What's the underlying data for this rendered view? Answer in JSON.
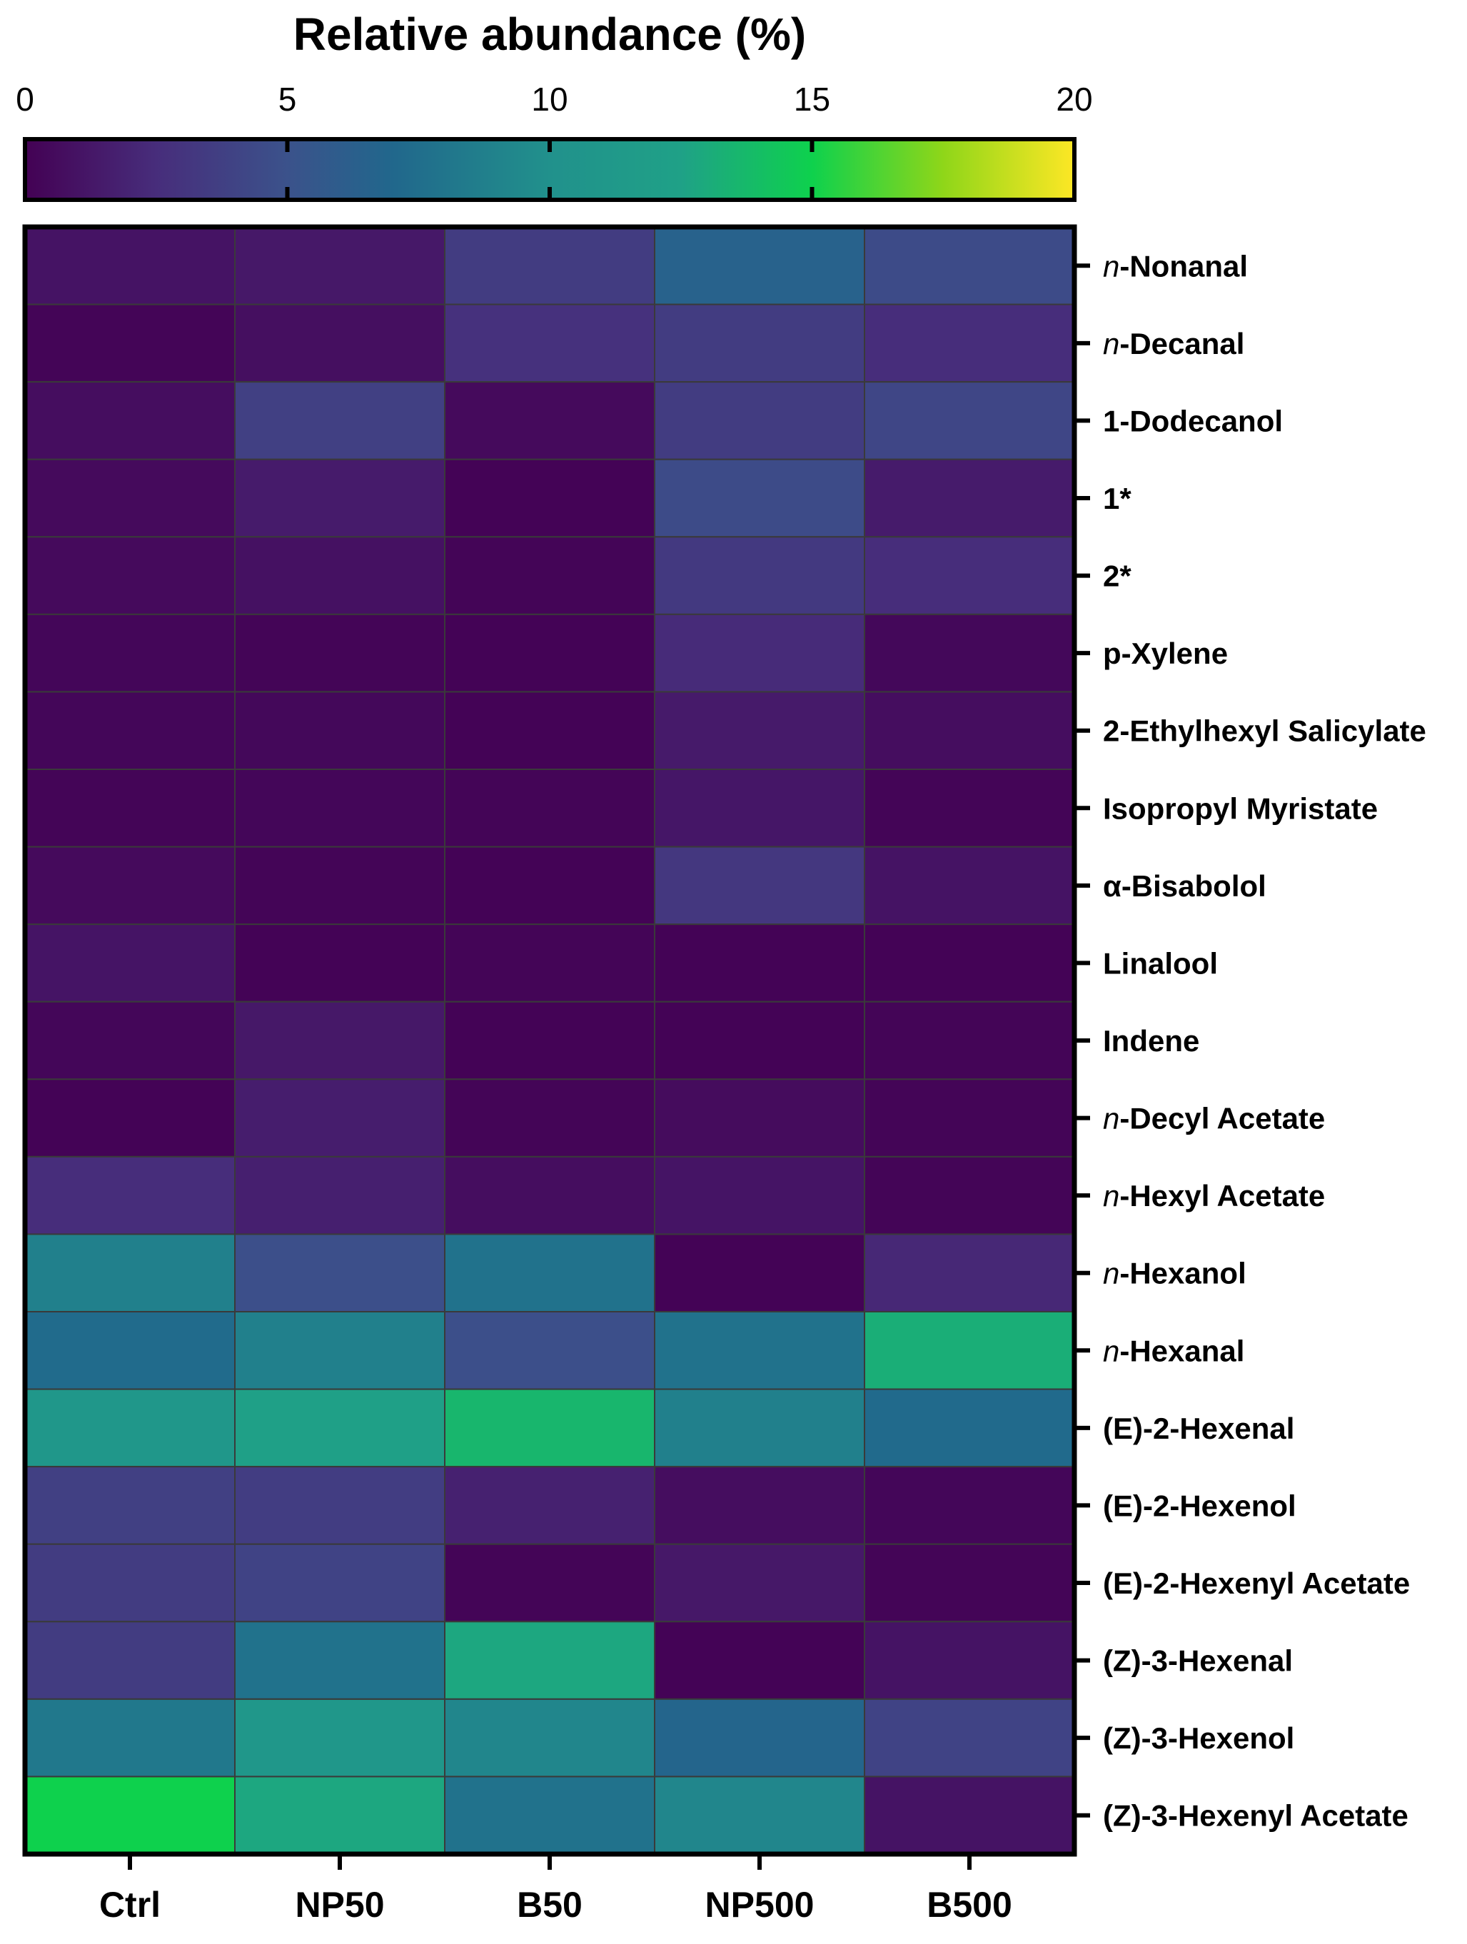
{
  "chart_data": {
    "type": "heatmap",
    "title": "Relative abundance (%)",
    "colorbar": {
      "range": [
        0,
        20
      ],
      "ticks": [
        "0",
        "5",
        "10",
        "15",
        "20"
      ],
      "stops": [
        {
          "value": 0,
          "color": "#440154"
        },
        {
          "value": 2.5,
          "color": "#472d7b"
        },
        {
          "value": 5,
          "color": "#3b528b"
        },
        {
          "value": 7,
          "color": "#21678c"
        },
        {
          "value": 10,
          "color": "#21918c"
        },
        {
          "value": 12.5,
          "color": "#1fa187"
        },
        {
          "value": 15,
          "color": "#0ed14d"
        },
        {
          "value": 17.5,
          "color": "#8fd619"
        },
        {
          "value": 20,
          "color": "#fde725"
        }
      ]
    },
    "columns": [
      "Ctrl",
      "NP50",
      "B50",
      "NP500",
      "B500"
    ],
    "rows": [
      {
        "label": "n-Nonanal",
        "prefix": "n",
        "suffix": "-Nonanal",
        "values": [
          1.0,
          1.3,
          3.5,
          6.5,
          4.5
        ]
      },
      {
        "label": "n-Decanal",
        "prefix": "n",
        "suffix": "-Decanal",
        "values": [
          0.2,
          0.8,
          2.8,
          3.5,
          2.5
        ]
      },
      {
        "label": "1-Dodecanol",
        "prefix": "",
        "suffix": "1-Dodecanol",
        "values": [
          0.7,
          3.8,
          0.5,
          3.5,
          4.2
        ]
      },
      {
        "label": "1*",
        "prefix": "",
        "suffix": "1*",
        "values": [
          0.5,
          1.5,
          0.1,
          4.5,
          1.5
        ]
      },
      {
        "label": "2*",
        "prefix": "",
        "suffix": "2*",
        "values": [
          0.5,
          0.9,
          0.2,
          3.3,
          2.5
        ]
      },
      {
        "label": "p-Xylene",
        "prefix": "",
        "suffix": "p-Xylene",
        "values": [
          0.3,
          0.2,
          0.1,
          2.4,
          0.4
        ]
      },
      {
        "label": "2-Ethylhexyl Salicylate",
        "prefix": "",
        "suffix": "2-Ethylhexyl Salicylate",
        "values": [
          0.3,
          0.4,
          0.1,
          1.4,
          0.7
        ]
      },
      {
        "label": "Isopropyl Myristate",
        "prefix": "",
        "suffix": "Isopropyl Myristate",
        "values": [
          0.2,
          0.3,
          0.2,
          1.2,
          0.2
        ]
      },
      {
        "label": "α-Bisabolol",
        "prefix": "",
        "suffix": "α-Bisabolol",
        "values": [
          0.5,
          0.2,
          0.1,
          3.2,
          1.0
        ]
      },
      {
        "label": "Linalool",
        "prefix": "",
        "suffix": "Linalool",
        "values": [
          1.1,
          0.1,
          0.2,
          0.1,
          0.1
        ]
      },
      {
        "label": "Indene",
        "prefix": "",
        "suffix": "Indene",
        "values": [
          0.3,
          1.3,
          0.1,
          0.1,
          0.2
        ]
      },
      {
        "label": "n-Decyl Acetate",
        "prefix": "n",
        "suffix": "-Decyl Acetate",
        "values": [
          0.1,
          1.6,
          0.2,
          0.6,
          0.2
        ]
      },
      {
        "label": "n-Hexyl Acetate",
        "prefix": "n",
        "suffix": "-Hexyl Acetate",
        "values": [
          2.5,
          1.7,
          0.7,
          1.1,
          0.2
        ]
      },
      {
        "label": "n-Hexanol",
        "prefix": "n",
        "suffix": "-Hexanol",
        "values": [
          8.8,
          4.8,
          7.8,
          0.1,
          2.2
        ]
      },
      {
        "label": "n-Hexanal",
        "prefix": "n",
        "suffix": "-Hexanal",
        "values": [
          7.3,
          8.8,
          4.8,
          7.8,
          13.2
        ]
      },
      {
        "label": "(E)-2-Hexenal",
        "prefix": "",
        "suffix": "(E)-2-Hexenal",
        "values": [
          11.0,
          12.3,
          13.6,
          8.8,
          7.2
        ]
      },
      {
        "label": "(E)-2-Hexenol",
        "prefix": "",
        "suffix": "(E)-2-Hexenol",
        "values": [
          3.8,
          3.6,
          1.8,
          0.7,
          0.3
        ]
      },
      {
        "label": "(E)-2-Hexenyl Acetate",
        "prefix": "",
        "suffix": "(E)-2-Hexenyl Acetate",
        "values": [
          3.5,
          4.0,
          0.2,
          1.3,
          0.2
        ]
      },
      {
        "label": "(Z)-3-Hexenal",
        "prefix": "",
        "suffix": "(Z)-3-Hexenal",
        "values": [
          3.5,
          7.8,
          12.8,
          0.1,
          1.0
        ]
      },
      {
        "label": "(Z)-3-Hexenol",
        "prefix": "",
        "suffix": "(Z)-3-Hexenol",
        "values": [
          8.2,
          11.0,
          9.2,
          6.8,
          4.0
        ]
      },
      {
        "label": "(Z)-3-Hexenyl Acetate",
        "prefix": "",
        "suffix": "(Z)-3-Hexenyl Acetate",
        "values": [
          15.0,
          12.8,
          7.8,
          9.2,
          1.0
        ]
      }
    ]
  }
}
